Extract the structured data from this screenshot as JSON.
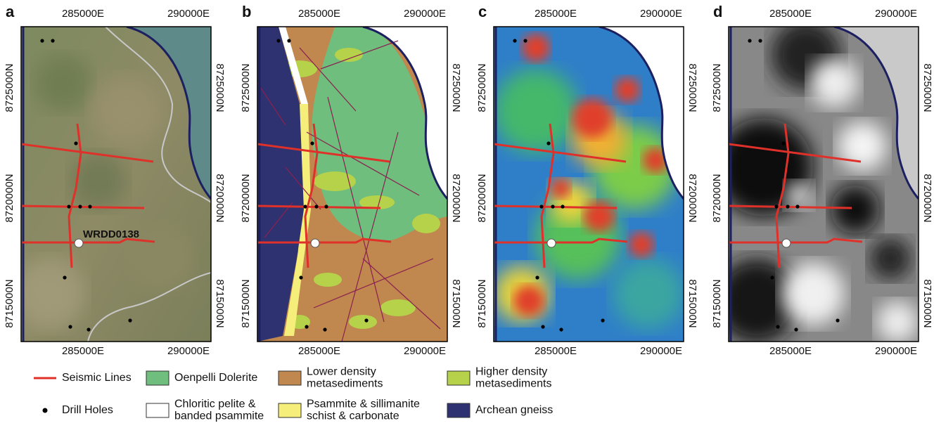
{
  "panels": [
    {
      "label": "a",
      "x_ticks": [
        "285000E",
        "290000E"
      ],
      "y_ticks": [
        "8725000N",
        "8720000N",
        "8715000N"
      ]
    },
    {
      "label": "b",
      "x_ticks": [
        "285000E",
        "290000E"
      ],
      "y_ticks": [
        "8725000N",
        "8720000N",
        "8715000N"
      ]
    },
    {
      "label": "c",
      "x_ticks": [
        "285000E",
        "290000E"
      ],
      "y_ticks": [
        "8725000N",
        "8720000N",
        "8715000N"
      ]
    },
    {
      "label": "d",
      "x_ticks": [
        "285000E",
        "290000E"
      ],
      "y_ticks": [
        "8725000N",
        "8720000N",
        "8715000N"
      ]
    }
  ],
  "annotation": "WRDD0138",
  "legend": [
    {
      "label_lines": [
        "Seismic Lines"
      ]
    },
    {
      "label_lines": [
        "Oenpelli Dolerite"
      ]
    },
    {
      "label_lines": [
        "Lower density",
        "metasediments"
      ]
    },
    {
      "label_lines": [
        "Higher density",
        "metasediments"
      ]
    },
    {
      "label_lines": [
        "Drill Holes"
      ]
    },
    {
      "label_lines": [
        "Chloritic pelite &",
        "banded psammite"
      ]
    },
    {
      "label_lines": [
        "Psammite & sillimanite",
        "schist & carbonate"
      ]
    },
    {
      "label_lines": [
        "Archean gneiss"
      ]
    }
  ]
}
